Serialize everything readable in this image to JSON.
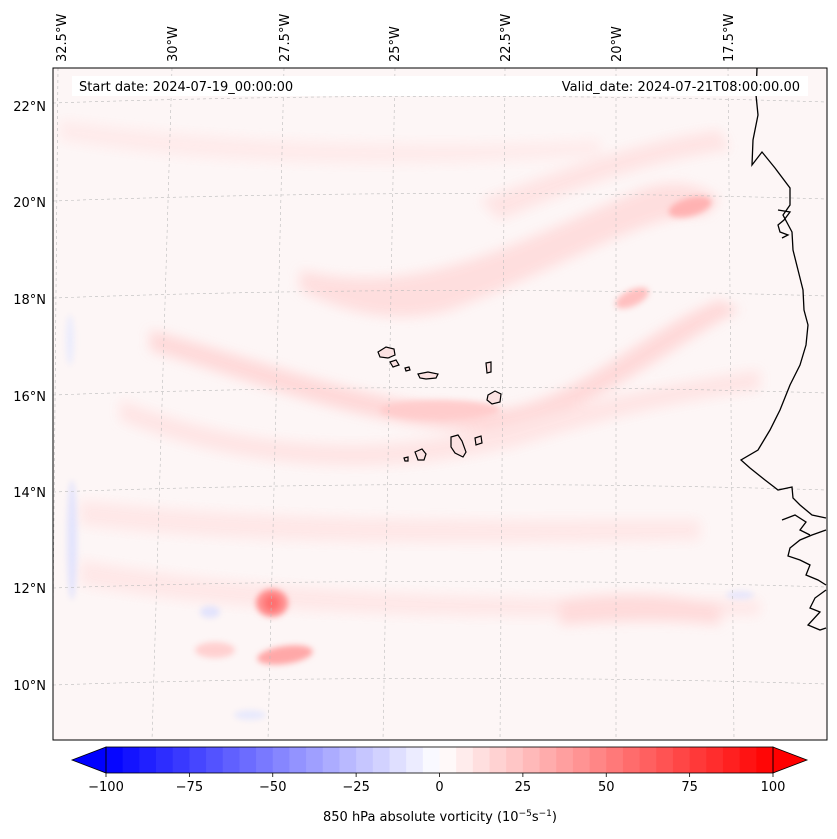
{
  "map": {
    "start_date": "Start date: 2024-07-19_00:00:00",
    "valid_date": "Valid_date: 2024-07-21T08:00:00.00",
    "lon_ticks": [
      "32.5°W",
      "30°W",
      "27.5°W",
      "25°W",
      "22.5°W",
      "20°W",
      "17.5°W"
    ],
    "lat_ticks": [
      "22°N",
      "20°N",
      "18°N",
      "16°N",
      "14°N",
      "12°N",
      "10°N"
    ],
    "field": "850 hPa absolute vorticity",
    "region": "Eastern tropical Atlantic, Cabo Verde islands, West African coast"
  },
  "colorbar": {
    "label": "850 hPa absolute vorticity (10",
    "label_exp1": "−5",
    "label_mid": "s",
    "label_exp2": "−1",
    "label_end": ")",
    "ticks": [
      "−100",
      "−75",
      "−50",
      "−25",
      "0",
      "25",
      "50",
      "75",
      "100"
    ],
    "range": [
      -100,
      100
    ],
    "extend": "both",
    "colormap": "bwr",
    "colors": {
      "negative": "#0000ff",
      "zero": "#ffffff",
      "positive": "#ff0000"
    }
  },
  "colors": {
    "coastline": "#000000",
    "gridline": "#bbbbbb",
    "background_tint": "#fdf5f5"
  }
}
